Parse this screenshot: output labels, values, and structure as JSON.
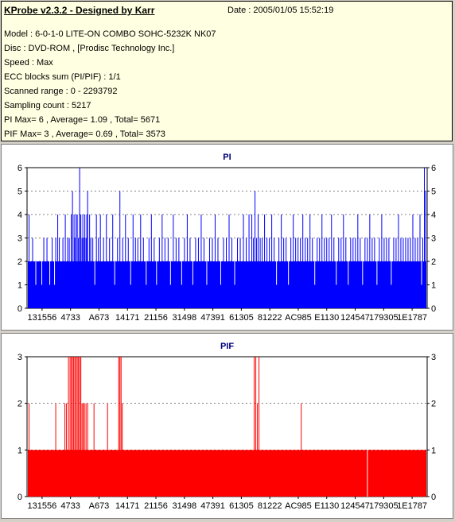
{
  "info": {
    "title": "KProbe v2.3.2 - Designed by Karr",
    "date": "Date : 2005/01/05 15:52:19",
    "lines": [
      "Model : 6-0-1-0 LITE-ON COMBO SOHC-5232K NK07",
      "Disc : DVD-ROM ,  [Prodisc Technology Inc.]",
      "Speed : Max",
      "ECC blocks sum (PI/PIF) : 1/1",
      "Scanned range : 0 - 2293792",
      "Sampling count : 5217",
      "PI Max= 6 , Average= 1.09 , Total= 5671",
      "PIF Max= 3 , Average= 0.69 , Total= 3573"
    ]
  },
  "chart_data": [
    {
      "type": "bar",
      "title": "PI",
      "color": "#0000ff",
      "ylim": [
        0,
        6
      ],
      "yticks": [
        0,
        1,
        2,
        3,
        4,
        5,
        6
      ],
      "xtick_labels": [
        "131556",
        "4733",
        "A673",
        "14171",
        "21156",
        "31498",
        "47391",
        "61305",
        "81222",
        "AC985",
        "E1130",
        "124547",
        "179305",
        "1E1787"
      ],
      "sampling_count": 5217,
      "baseline_value": 2,
      "grid": true,
      "spikes": [
        {
          "x": 0.003,
          "v": 4
        },
        {
          "x": 0.012,
          "v": 3
        },
        {
          "x": 0.02,
          "v": 1
        },
        {
          "x": 0.035,
          "v": 1
        },
        {
          "x": 0.04,
          "v": 3
        },
        {
          "x": 0.048,
          "v": 3
        },
        {
          "x": 0.055,
          "v": 1
        },
        {
          "x": 0.061,
          "v": 3
        },
        {
          "x": 0.067,
          "v": 1
        },
        {
          "x": 0.07,
          "v": 3
        },
        {
          "x": 0.075,
          "v": 4
        },
        {
          "x": 0.079,
          "v": 3
        },
        {
          "x": 0.088,
          "v": 3
        },
        {
          "x": 0.094,
          "v": 4
        },
        {
          "x": 0.1,
          "v": 3
        },
        {
          "x": 0.104,
          "v": 3
        },
        {
          "x": 0.109,
          "v": 4
        },
        {
          "x": 0.112,
          "v": 5
        },
        {
          "x": 0.116,
          "v": 4
        },
        {
          "x": 0.118,
          "v": 3
        },
        {
          "x": 0.121,
          "v": 4
        },
        {
          "x": 0.124,
          "v": 4
        },
        {
          "x": 0.127,
          "v": 3
        },
        {
          "x": 0.13,
          "v": 4
        },
        {
          "x": 0.133,
          "v": 4
        },
        {
          "x": 0.136,
          "v": 3
        },
        {
          "x": 0.138,
          "v": 4
        },
        {
          "x": 0.141,
          "v": 3
        },
        {
          "x": 0.143,
          "v": 4
        },
        {
          "x": 0.146,
          "v": 3
        },
        {
          "x": 0.148,
          "v": 4
        },
        {
          "x": 0.15,
          "v": 5
        },
        {
          "x": 0.13,
          "v": 6
        },
        {
          "x": 0.155,
          "v": 4
        },
        {
          "x": 0.158,
          "v": 3
        },
        {
          "x": 0.163,
          "v": 3
        },
        {
          "x": 0.168,
          "v": 1
        },
        {
          "x": 0.172,
          "v": 4
        },
        {
          "x": 0.177,
          "v": 3
        },
        {
          "x": 0.182,
          "v": 4
        },
        {
          "x": 0.19,
          "v": 3
        },
        {
          "x": 0.197,
          "v": 4
        },
        {
          "x": 0.205,
          "v": 3
        },
        {
          "x": 0.213,
          "v": 4
        },
        {
          "x": 0.218,
          "v": 1
        },
        {
          "x": 0.225,
          "v": 3
        },
        {
          "x": 0.231,
          "v": 5
        },
        {
          "x": 0.238,
          "v": 3
        },
        {
          "x": 0.245,
          "v": 4
        },
        {
          "x": 0.252,
          "v": 3
        },
        {
          "x": 0.258,
          "v": 1
        },
        {
          "x": 0.264,
          "v": 4
        },
        {
          "x": 0.27,
          "v": 3
        },
        {
          "x": 0.276,
          "v": 3
        },
        {
          "x": 0.283,
          "v": 4
        },
        {
          "x": 0.29,
          "v": 3
        },
        {
          "x": 0.297,
          "v": 1
        },
        {
          "x": 0.304,
          "v": 3
        },
        {
          "x": 0.31,
          "v": 4
        },
        {
          "x": 0.317,
          "v": 3
        },
        {
          "x": 0.323,
          "v": 1
        },
        {
          "x": 0.33,
          "v": 3
        },
        {
          "x": 0.337,
          "v": 4
        },
        {
          "x": 0.344,
          "v": 3
        },
        {
          "x": 0.352,
          "v": 3
        },
        {
          "x": 0.358,
          "v": 1
        },
        {
          "x": 0.365,
          "v": 4
        },
        {
          "x": 0.372,
          "v": 3
        },
        {
          "x": 0.379,
          "v": 3
        },
        {
          "x": 0.386,
          "v": 1
        },
        {
          "x": 0.393,
          "v": 3
        },
        {
          "x": 0.4,
          "v": 4
        },
        {
          "x": 0.407,
          "v": 3
        },
        {
          "x": 0.414,
          "v": 1
        },
        {
          "x": 0.421,
          "v": 3
        },
        {
          "x": 0.428,
          "v": 3
        },
        {
          "x": 0.435,
          "v": 4
        },
        {
          "x": 0.442,
          "v": 3
        },
        {
          "x": 0.449,
          "v": 1
        },
        {
          "x": 0.456,
          "v": 3
        },
        {
          "x": 0.463,
          "v": 3
        },
        {
          "x": 0.47,
          "v": 4
        },
        {
          "x": 0.477,
          "v": 3
        },
        {
          "x": 0.484,
          "v": 1
        },
        {
          "x": 0.491,
          "v": 3
        },
        {
          "x": 0.498,
          "v": 3
        },
        {
          "x": 0.505,
          "v": 4
        },
        {
          "x": 0.512,
          "v": 3
        },
        {
          "x": 0.519,
          "v": 1
        },
        {
          "x": 0.526,
          "v": 3
        },
        {
          "x": 0.533,
          "v": 3
        },
        {
          "x": 0.541,
          "v": 4
        },
        {
          "x": 0.548,
          "v": 3
        },
        {
          "x": 0.555,
          "v": 4
        },
        {
          "x": 0.562,
          "v": 4
        },
        {
          "x": 0.566,
          "v": 3
        },
        {
          "x": 0.57,
          "v": 5
        },
        {
          "x": 0.574,
          "v": 3
        },
        {
          "x": 0.578,
          "v": 4
        },
        {
          "x": 0.583,
          "v": 3
        },
        {
          "x": 0.588,
          "v": 3
        },
        {
          "x": 0.594,
          "v": 4
        },
        {
          "x": 0.6,
          "v": 3
        },
        {
          "x": 0.606,
          "v": 3
        },
        {
          "x": 0.612,
          "v": 4
        },
        {
          "x": 0.618,
          "v": 3
        },
        {
          "x": 0.624,
          "v": 1
        },
        {
          "x": 0.63,
          "v": 3
        },
        {
          "x": 0.636,
          "v": 4
        },
        {
          "x": 0.642,
          "v": 3
        },
        {
          "x": 0.648,
          "v": 3
        },
        {
          "x": 0.654,
          "v": 1
        },
        {
          "x": 0.66,
          "v": 3
        },
        {
          "x": 0.666,
          "v": 4
        },
        {
          "x": 0.672,
          "v": 3
        },
        {
          "x": 0.678,
          "v": 3
        },
        {
          "x": 0.684,
          "v": 3
        },
        {
          "x": 0.69,
          "v": 4
        },
        {
          "x": 0.696,
          "v": 3
        },
        {
          "x": 0.702,
          "v": 3
        },
        {
          "x": 0.708,
          "v": 4
        },
        {
          "x": 0.714,
          "v": 3
        },
        {
          "x": 0.72,
          "v": 1
        },
        {
          "x": 0.726,
          "v": 3
        },
        {
          "x": 0.732,
          "v": 3
        },
        {
          "x": 0.738,
          "v": 4
        },
        {
          "x": 0.744,
          "v": 3
        },
        {
          "x": 0.75,
          "v": 3
        },
        {
          "x": 0.756,
          "v": 3
        },
        {
          "x": 0.762,
          "v": 4
        },
        {
          "x": 0.768,
          "v": 3
        },
        {
          "x": 0.774,
          "v": 1
        },
        {
          "x": 0.78,
          "v": 3
        },
        {
          "x": 0.786,
          "v": 3
        },
        {
          "x": 0.792,
          "v": 4
        },
        {
          "x": 0.798,
          "v": 3
        },
        {
          "x": 0.804,
          "v": 1
        },
        {
          "x": 0.81,
          "v": 3
        },
        {
          "x": 0.816,
          "v": 3
        },
        {
          "x": 0.822,
          "v": 3
        },
        {
          "x": 0.828,
          "v": 4
        },
        {
          "x": 0.834,
          "v": 3
        },
        {
          "x": 0.84,
          "v": 1
        },
        {
          "x": 0.846,
          "v": 3
        },
        {
          "x": 0.852,
          "v": 3
        },
        {
          "x": 0.858,
          "v": 4
        },
        {
          "x": 0.864,
          "v": 3
        },
        {
          "x": 0.87,
          "v": 3
        },
        {
          "x": 0.876,
          "v": 1
        },
        {
          "x": 0.882,
          "v": 3
        },
        {
          "x": 0.888,
          "v": 4
        },
        {
          "x": 0.894,
          "v": 3
        },
        {
          "x": 0.9,
          "v": 3
        },
        {
          "x": 0.906,
          "v": 3
        },
        {
          "x": 0.912,
          "v": 1
        },
        {
          "x": 0.918,
          "v": 3
        },
        {
          "x": 0.924,
          "v": 3
        },
        {
          "x": 0.93,
          "v": 4
        },
        {
          "x": 0.936,
          "v": 3
        },
        {
          "x": 0.942,
          "v": 3
        },
        {
          "x": 0.948,
          "v": 3
        },
        {
          "x": 0.954,
          "v": 3
        },
        {
          "x": 0.96,
          "v": 3
        },
        {
          "x": 0.966,
          "v": 4
        },
        {
          "x": 0.972,
          "v": 3
        },
        {
          "x": 0.978,
          "v": 3
        },
        {
          "x": 0.984,
          "v": 4
        },
        {
          "x": 0.988,
          "v": 1
        },
        {
          "x": 0.991,
          "v": 3
        },
        {
          "x": 0.995,
          "v": 6
        },
        {
          "x": 0.998,
          "v": 5
        }
      ]
    },
    {
      "type": "bar",
      "title": "PIF",
      "color": "#ff0000",
      "ylim": [
        0,
        3
      ],
      "yticks": [
        0,
        1,
        2,
        3
      ],
      "xtick_labels": [
        "131556",
        "4733",
        "A673",
        "14171",
        "21156",
        "31498",
        "47391",
        "61305",
        "81222",
        "AC985",
        "E1130",
        "124547",
        "179305",
        "1E1787"
      ],
      "sampling_count": 5217,
      "baseline_value": 1,
      "grid": true,
      "spikes": [
        {
          "x": 0.003,
          "v": 2
        },
        {
          "x": 0.07,
          "v": 2
        },
        {
          "x": 0.093,
          "v": 2
        },
        {
          "x": 0.097,
          "v": 2
        },
        {
          "x": 0.102,
          "v": 3
        },
        {
          "x": 0.106,
          "v": 3
        },
        {
          "x": 0.109,
          "v": 3
        },
        {
          "x": 0.112,
          "v": 3
        },
        {
          "x": 0.115,
          "v": 3
        },
        {
          "x": 0.118,
          "v": 3
        },
        {
          "x": 0.121,
          "v": 3
        },
        {
          "x": 0.124,
          "v": 3
        },
        {
          "x": 0.127,
          "v": 3
        },
        {
          "x": 0.13,
          "v": 3
        },
        {
          "x": 0.133,
          "v": 3
        },
        {
          "x": 0.136,
          "v": 2
        },
        {
          "x": 0.139,
          "v": 2
        },
        {
          "x": 0.142,
          "v": 2
        },
        {
          "x": 0.146,
          "v": 2
        },
        {
          "x": 0.15,
          "v": 2
        },
        {
          "x": 0.166,
          "v": 2
        },
        {
          "x": 0.2,
          "v": 2
        },
        {
          "x": 0.228,
          "v": 3
        },
        {
          "x": 0.231,
          "v": 3
        },
        {
          "x": 0.234,
          "v": 3
        },
        {
          "x": 0.237,
          "v": 2
        },
        {
          "x": 0.568,
          "v": 3
        },
        {
          "x": 0.572,
          "v": 3
        },
        {
          "x": 0.576,
          "v": 2
        },
        {
          "x": 0.58,
          "v": 3
        },
        {
          "x": 0.686,
          "v": 2
        },
        {
          "x": 0.852,
          "v": 0
        }
      ]
    }
  ]
}
